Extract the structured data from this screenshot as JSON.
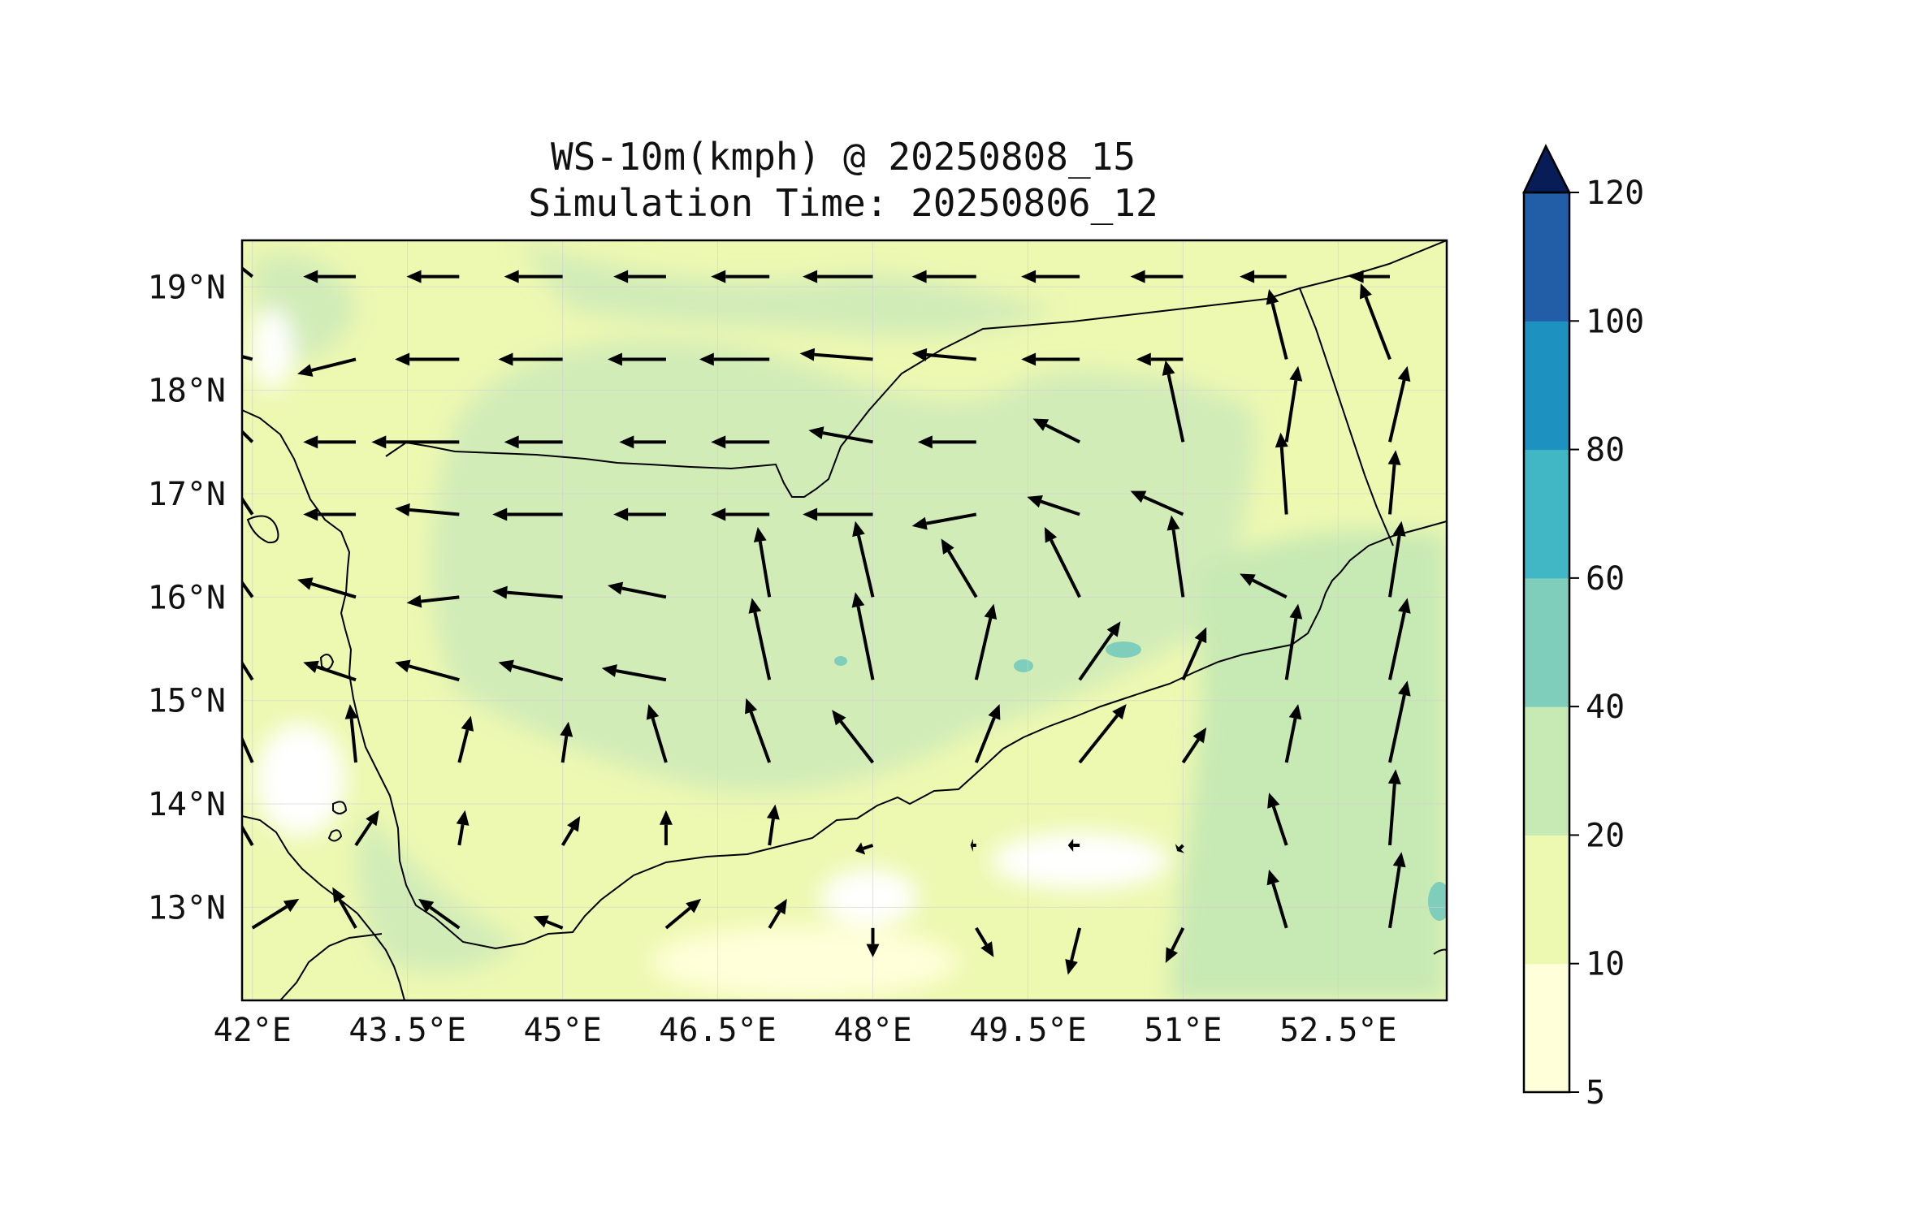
{
  "title": {
    "line1": "WS-10m(kmph) @ 20250808_15",
    "line2": "Simulation Time: 20250806_12"
  },
  "map": {
    "lon_range": [
      41.9,
      53.55
    ],
    "lat_range": [
      12.1,
      19.45
    ],
    "x_ticks": [
      {
        "value": 42.0,
        "label": "42°E"
      },
      {
        "value": 43.5,
        "label": "43.5°E"
      },
      {
        "value": 45.0,
        "label": "45°E"
      },
      {
        "value": 46.5,
        "label": "46.5°E"
      },
      {
        "value": 48.0,
        "label": "48°E"
      },
      {
        "value": 49.5,
        "label": "49.5°E"
      },
      {
        "value": 51.0,
        "label": "51°E"
      },
      {
        "value": 52.5,
        "label": "52.5°E"
      }
    ],
    "y_ticks": [
      {
        "value": 19,
        "label": "19°N"
      },
      {
        "value": 18,
        "label": "18°N"
      },
      {
        "value": 17,
        "label": "17°N"
      },
      {
        "value": 16,
        "label": "16°N"
      },
      {
        "value": 15,
        "label": "15°N"
      },
      {
        "value": 14,
        "label": "14°N"
      },
      {
        "value": 13,
        "label": "13°N"
      }
    ],
    "grid": true
  },
  "colorbar": {
    "levels": [
      {
        "value": 5,
        "label": "5",
        "color": "#ffffd9"
      },
      {
        "value": 10,
        "label": "10",
        "color": "#edf8b1"
      },
      {
        "value": 20,
        "label": "20",
        "color": "#c7e9b4"
      },
      {
        "value": 40,
        "label": "40",
        "color": "#7fcdbb"
      },
      {
        "value": 60,
        "label": "60",
        "color": "#41b6c4"
      },
      {
        "value": 80,
        "label": "80",
        "color": "#1d91c0"
      },
      {
        "value": 100,
        "label": "100",
        "color": "#225ea8"
      },
      {
        "value": 120,
        "label": "120",
        "color": "#0c2c84"
      }
    ],
    "extend": "max",
    "extend_color": "#081d58"
  },
  "colors": {
    "land_moderate": "#d2ecb8",
    "calm": "#ffffff",
    "strong": "#7fcdbb",
    "coast": "#000000",
    "arrow": "#000000"
  },
  "wind_field": {
    "units": "kmph",
    "rows": [
      {
        "lat": 19.1,
        "vectors": [
          [
            42.0,
            -10,
            8
          ],
          [
            43.0,
            -18,
            0
          ],
          [
            44.0,
            -18,
            0
          ],
          [
            45.0,
            -20,
            0
          ],
          [
            46.0,
            -18,
            0
          ],
          [
            47.0,
            -20,
            0
          ],
          [
            48.0,
            -24,
            0
          ],
          [
            49.0,
            -22,
            0
          ],
          [
            50.0,
            -20,
            0
          ],
          [
            51.0,
            -18,
            0
          ],
          [
            52.0,
            -16,
            0
          ],
          [
            53.0,
            -14,
            0
          ]
        ]
      },
      {
        "lat": 18.3,
        "vectors": [
          [
            42.0,
            -15,
            4
          ],
          [
            43.0,
            -20,
            -5
          ],
          [
            44.0,
            -22,
            0
          ],
          [
            45.0,
            -22,
            0
          ],
          [
            46.0,
            -20,
            0
          ],
          [
            47.0,
            -24,
            0
          ],
          [
            48.0,
            -25,
            2
          ],
          [
            49.0,
            -22,
            2
          ],
          [
            50.0,
            -20,
            0
          ],
          [
            51.0,
            -16,
            0
          ],
          [
            52.0,
            -6,
            24
          ],
          [
            53.0,
            -10,
            26
          ]
        ]
      },
      {
        "lat": 17.5,
        "vectors": [
          [
            42.0,
            -10,
            10
          ],
          [
            43.0,
            -18,
            0
          ],
          [
            44.0,
            -30,
            0
          ],
          [
            45.0,
            -20,
            0
          ],
          [
            46.0,
            -16,
            0
          ],
          [
            47.0,
            -20,
            0
          ],
          [
            48.0,
            -22,
            4
          ],
          [
            49.0,
            -20,
            0
          ],
          [
            50.0,
            -16,
            8
          ],
          [
            51.0,
            -6,
            28
          ],
          [
            52.0,
            4,
            26
          ],
          [
            53.0,
            6,
            26
          ]
        ]
      },
      {
        "lat": 16.8,
        "vectors": [
          [
            42.0,
            -8,
            12
          ],
          [
            43.0,
            -18,
            0
          ],
          [
            44.0,
            -22,
            2
          ],
          [
            45.0,
            -24,
            0
          ],
          [
            46.0,
            -18,
            0
          ],
          [
            47.0,
            -20,
            0
          ],
          [
            48.0,
            -24,
            0
          ],
          [
            49.0,
            -22,
            -4
          ],
          [
            50.0,
            -18,
            6
          ],
          [
            51.0,
            -18,
            8
          ],
          [
            52.0,
            -2,
            28
          ],
          [
            53.0,
            2,
            22
          ]
        ]
      },
      {
        "lat": 16.0,
        "vectors": [
          [
            42.0,
            -10,
            14
          ],
          [
            43.0,
            -20,
            6
          ],
          [
            44.0,
            -18,
            -2
          ],
          [
            45.0,
            -24,
            2
          ],
          [
            46.0,
            -20,
            4
          ],
          [
            47.0,
            -4,
            24
          ],
          [
            48.0,
            -6,
            26
          ],
          [
            49.0,
            -12,
            20
          ],
          [
            50.0,
            -12,
            24
          ],
          [
            51.0,
            -4,
            28
          ],
          [
            52.0,
            -16,
            8
          ],
          [
            53.0,
            4,
            26
          ]
        ]
      },
      {
        "lat": 15.2,
        "vectors": [
          [
            42.0,
            -10,
            16
          ],
          [
            43.0,
            -18,
            6
          ],
          [
            44.0,
            -22,
            6
          ],
          [
            45.0,
            -22,
            6
          ],
          [
            46.0,
            -22,
            4
          ],
          [
            47.0,
            -6,
            28
          ],
          [
            48.0,
            -6,
            30
          ],
          [
            49.0,
            6,
            26
          ],
          [
            50.0,
            14,
            20
          ],
          [
            51.0,
            8,
            18
          ],
          [
            52.0,
            4,
            26
          ],
          [
            53.0,
            6,
            28
          ]
        ]
      },
      {
        "lat": 14.4,
        "vectors": [
          [
            42.0,
            -8,
            18
          ],
          [
            43.0,
            -2,
            20
          ],
          [
            44.0,
            4,
            16
          ],
          [
            45.0,
            2,
            14
          ],
          [
            46.0,
            -6,
            20
          ],
          [
            47.0,
            -8,
            22
          ],
          [
            48.0,
            -14,
            18
          ],
          [
            49.0,
            8,
            20
          ],
          [
            50.0,
            16,
            20
          ],
          [
            51.0,
            8,
            12
          ],
          [
            52.0,
            4,
            20
          ],
          [
            53.0,
            6,
            28
          ]
        ]
      },
      {
        "lat": 13.6,
        "vectors": [
          [
            42.0,
            -8,
            14
          ],
          [
            43.0,
            8,
            12
          ],
          [
            44.0,
            2,
            12
          ],
          [
            45.0,
            6,
            10
          ],
          [
            46.0,
            0,
            12
          ],
          [
            47.0,
            2,
            14
          ],
          [
            48.0,
            -6,
            -2
          ],
          [
            49.0,
            -2,
            0
          ],
          [
            50.0,
            -4,
            0
          ],
          [
            51.0,
            -2,
            -2
          ],
          [
            52.0,
            -6,
            18
          ],
          [
            53.0,
            2,
            26
          ]
        ]
      },
      {
        "lat": 12.8,
        "vectors": [
          [
            42.0,
            16,
            10
          ],
          [
            43.0,
            -8,
            14
          ],
          [
            44.0,
            -14,
            10
          ],
          [
            45.0,
            -10,
            4
          ],
          [
            46.0,
            12,
            10
          ],
          [
            47.0,
            6,
            10
          ],
          [
            48.0,
            0,
            -10
          ],
          [
            49.0,
            6,
            -10
          ],
          [
            50.0,
            -4,
            -16
          ],
          [
            51.0,
            -6,
            -12
          ],
          [
            52.0,
            -6,
            20
          ],
          [
            53.0,
            4,
            26
          ]
        ]
      }
    ]
  }
}
